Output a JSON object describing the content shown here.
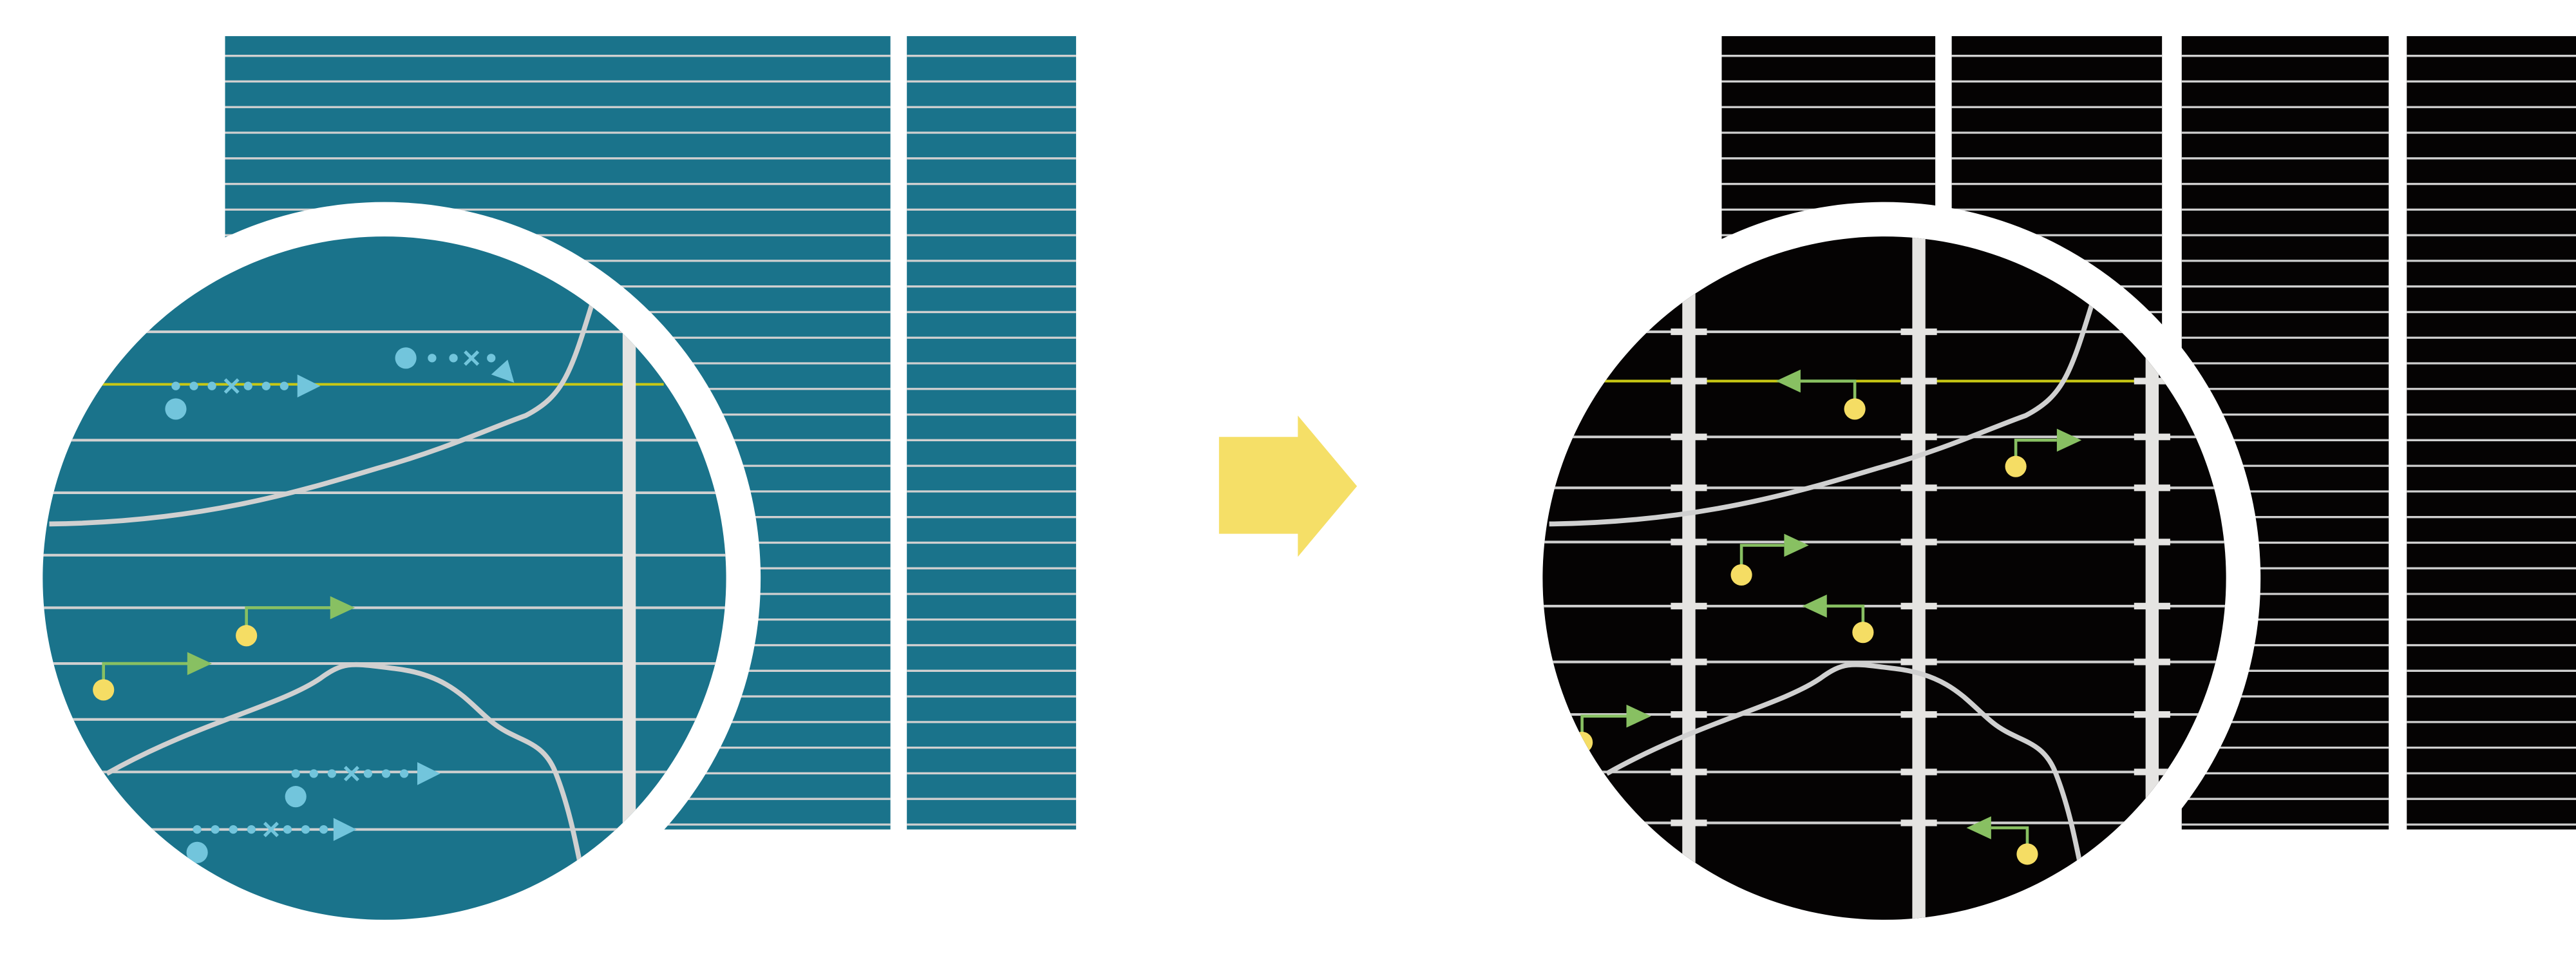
{
  "colors": {
    "background": "#ffffff",
    "before_panel": "#1a738b",
    "after_panel": "#050303",
    "grid_line": "#d0d0d0",
    "divider_bar": "#e5e4e2",
    "highlight_line": "#c8c814",
    "dotted_arrow": "#72c5dc",
    "green_arrow": "#88c062",
    "node": "#f5dd64",
    "transition_arrow": "#f5df67"
  },
  "icons": {
    "left_panel": "magnifier-circle-icon",
    "transition": "right-arrow-icon",
    "right_panel": "magnifier-circle-icon"
  }
}
